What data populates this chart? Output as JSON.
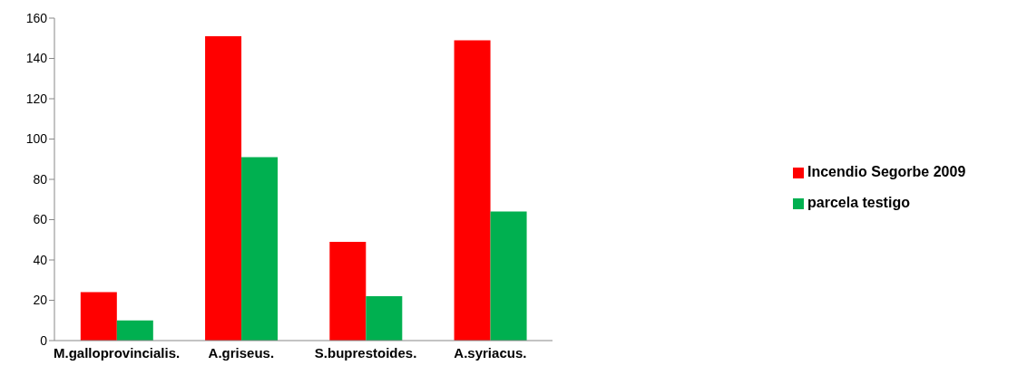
{
  "chart_data": {
    "type": "bar",
    "categories": [
      "M.galloprovincialis.",
      "A.griseus.",
      "S.buprestoides.",
      "A.syriacus."
    ],
    "series": [
      {
        "name": "Incendio Segorbe 2009",
        "color": "#ff0000",
        "values": [
          24,
          151,
          49,
          149
        ]
      },
      {
        "name": "parcela testigo",
        "color": "#00b050",
        "values": [
          10,
          91,
          22,
          64
        ]
      }
    ],
    "ylim": [
      0,
      160
    ],
    "yticks": [
      0,
      20,
      40,
      60,
      80,
      100,
      120,
      140,
      160
    ],
    "grid": false,
    "legend": "right"
  }
}
